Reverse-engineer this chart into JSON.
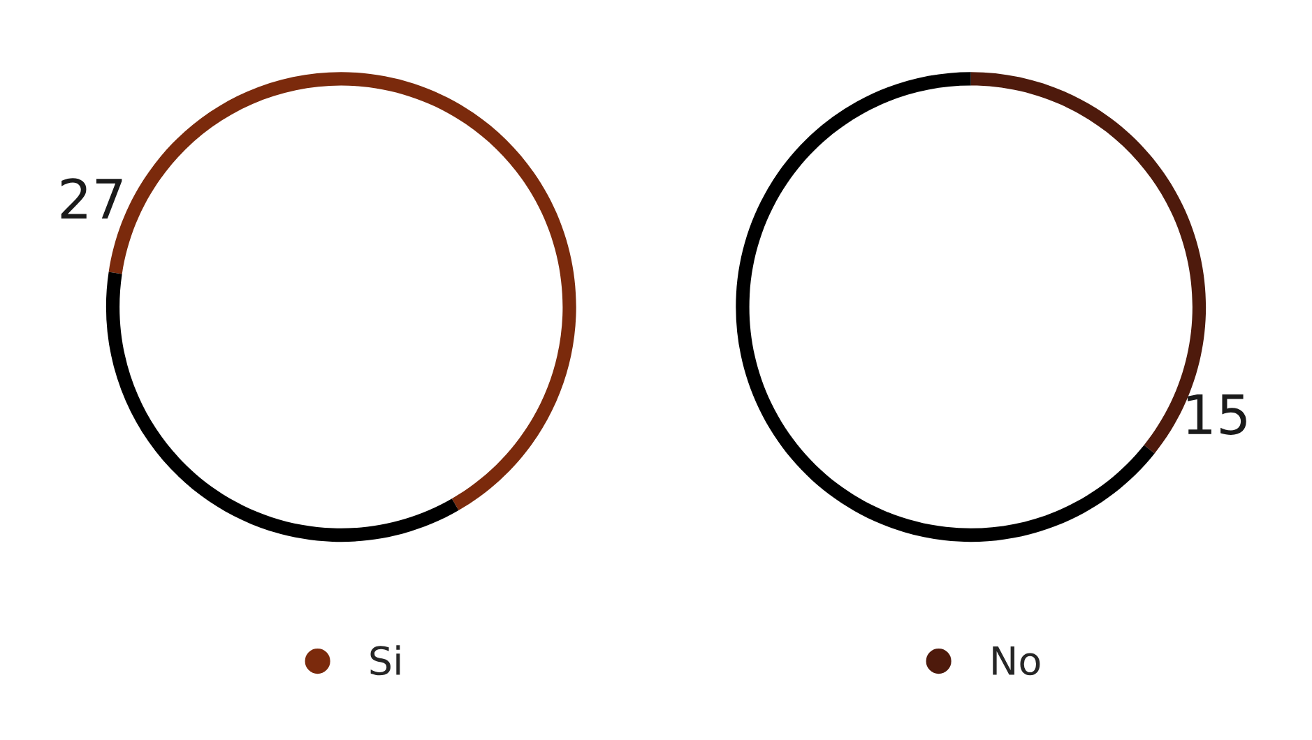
{
  "chart_data": [
    {
      "type": "donut",
      "categories": [
        "Si",
        null
      ],
      "values": [
        27,
        15
      ],
      "colors": [
        "#7b2a0c",
        "#000000"
      ],
      "value_labels": [
        "27",
        null
      ],
      "legend": "bottom"
    },
    {
      "type": "donut",
      "categories": [
        "No",
        null
      ],
      "values": [
        15,
        27
      ],
      "colors": [
        "#4e1a0c",
        "#000000"
      ],
      "value_labels": [
        "15",
        null
      ],
      "legend": "bottom"
    }
  ]
}
